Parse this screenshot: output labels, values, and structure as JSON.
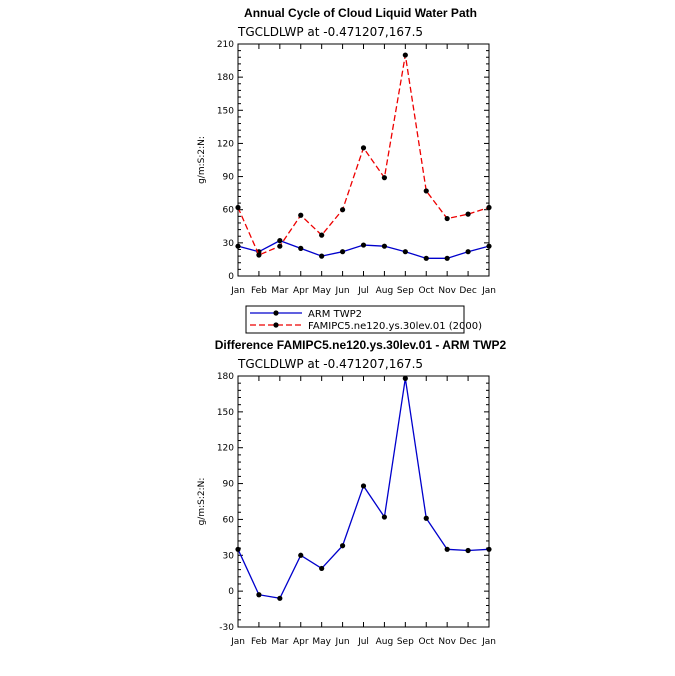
{
  "chart_data": [
    {
      "type": "line",
      "title": "Annual Cycle of Cloud Liquid Water Path",
      "subtitle": "TGCLDLWP  at  -0.471207,167.5",
      "ylabel": "g/m:S:2:N:",
      "categories": [
        "Jan",
        "Feb",
        "Mar",
        "Apr",
        "May",
        "Jun",
        "Jul",
        "Aug",
        "Sep",
        "Oct",
        "Nov",
        "Dec",
        "Jan"
      ],
      "ylim": [
        0,
        210
      ],
      "yticks": [
        0,
        30,
        60,
        90,
        120,
        150,
        180,
        210
      ],
      "series": [
        {
          "name": "ARM TWP2",
          "color": "#0000cc",
          "dash": "solid",
          "values": [
            27,
            22,
            32,
            25,
            18,
            22,
            28,
            27,
            22,
            16,
            16,
            22,
            27
          ]
        },
        {
          "name": "FAMIPC5.ne120.ys.30lev.01 (2000)",
          "color": "#ee0000",
          "dash": "dashed",
          "values": [
            62,
            19,
            27,
            55,
            37,
            60,
            116,
            89,
            200,
            77,
            52,
            56,
            62
          ]
        }
      ],
      "legend": "below"
    },
    {
      "type": "line",
      "title": "Difference FAMIPC5.ne120.ys.30lev.01 - ARM TWP2",
      "subtitle": "TGCLDLWP  at  -0.471207,167.5",
      "ylabel": "g/m:S:2:N:",
      "categories": [
        "Jan",
        "Feb",
        "Mar",
        "Apr",
        "May",
        "Jun",
        "Jul",
        "Aug",
        "Sep",
        "Oct",
        "Nov",
        "Dec",
        "Jan"
      ],
      "ylim": [
        -30,
        180
      ],
      "yticks": [
        -30,
        0,
        30,
        60,
        90,
        120,
        150,
        180
      ],
      "series": [
        {
          "color": "#0000cc",
          "dash": "solid",
          "values": [
            35,
            -3,
            -6,
            30,
            19,
            38,
            88,
            62,
            178,
            61,
            35,
            34,
            35
          ]
        }
      ]
    }
  ]
}
